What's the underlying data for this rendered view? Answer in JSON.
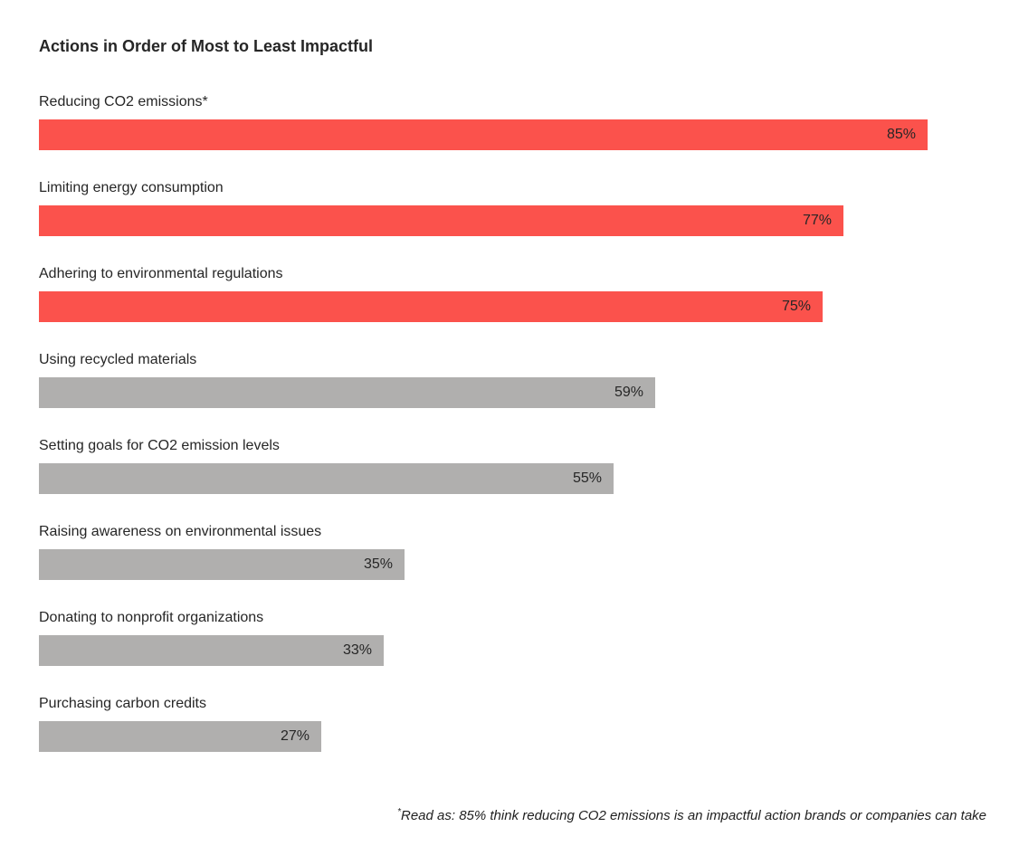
{
  "chart_data": {
    "type": "bar",
    "orientation": "horizontal",
    "title": "Actions in Order of Most to Least Impactful",
    "categories": [
      "Reducing CO2 emissions*",
      "Limiting energy consumption",
      "Adhering to environmental regulations",
      "Using recycled materials",
      "Setting goals for CO2 emission levels",
      "Raising awareness on environmental issues",
      "Donating to nonprofit organizations",
      "Purchasing carbon credits"
    ],
    "values": [
      85,
      77,
      75,
      59,
      55,
      35,
      33,
      27
    ],
    "value_labels": [
      "85%",
      "77%",
      "75%",
      "59%",
      "55%",
      "35%",
      "33%",
      "27%"
    ],
    "highlighted": [
      true,
      true,
      true,
      false,
      false,
      false,
      false,
      false
    ],
    "xlim": [
      0,
      100
    ],
    "value_label_position": "inside-end",
    "grid": false,
    "legend": "none",
    "colors": {
      "highlight_bar": "#fb524c",
      "default_bar": "#b0afae",
      "text": "#262626"
    }
  },
  "footnote": {
    "marker": "*",
    "text": "Read as: 85% think reducing CO2 emissions is an impactful action brands or companies can take"
  }
}
